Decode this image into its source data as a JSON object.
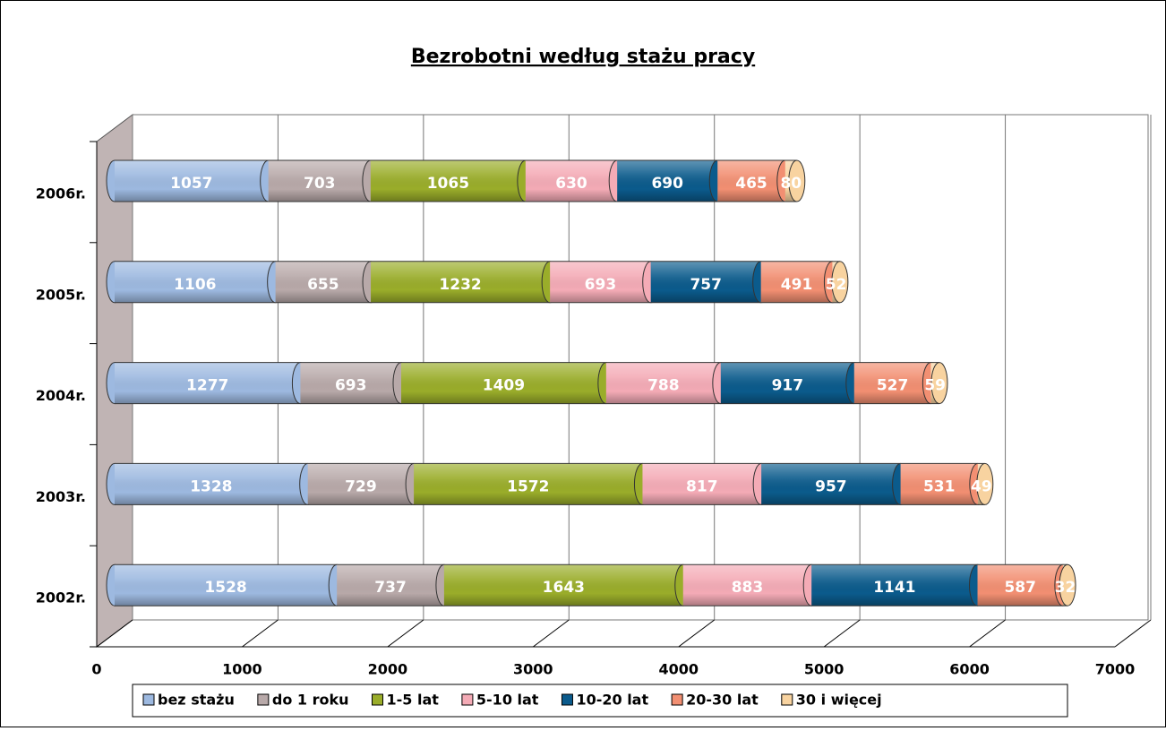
{
  "chart_data": {
    "type": "bar",
    "orientation": "horizontal",
    "stacked": true,
    "title": "Bezrobotni według stażu pracy",
    "categories": [
      "2006r.",
      "2005r.",
      "2004r.",
      "2003r.",
      "2002r."
    ],
    "series": [
      {
        "name": "bez stażu",
        "color": "#9db9e0",
        "values": [
          1057,
          1106,
          1277,
          1328,
          1528
        ]
      },
      {
        "name": "do 1 roku",
        "color": "#b8a9a9",
        "values": [
          703,
          655,
          693,
          729,
          737
        ]
      },
      {
        "name": "1-5 lat",
        "color": "#9aad2a",
        "values": [
          1065,
          1232,
          1409,
          1572,
          1643
        ]
      },
      {
        "name": "5-10 lat",
        "color": "#f4abb6",
        "values": [
          630,
          693,
          788,
          817,
          883
        ]
      },
      {
        "name": "10-20 lat",
        "color": "#0b5b8c",
        "values": [
          690,
          757,
          917,
          957,
          1141
        ]
      },
      {
        "name": "20-30 lat",
        "color": "#f28f72",
        "values": [
          465,
          491,
          527,
          531,
          587
        ]
      },
      {
        "name": "30 i więcej",
        "color": "#f8d3a0",
        "values": [
          80,
          52,
          59,
          49,
          32
        ]
      }
    ],
    "xlim": [
      0,
      7000
    ],
    "xticks": [
      0,
      1000,
      2000,
      3000,
      4000,
      5000,
      6000,
      7000
    ],
    "grid": true,
    "legend": "bottom"
  }
}
